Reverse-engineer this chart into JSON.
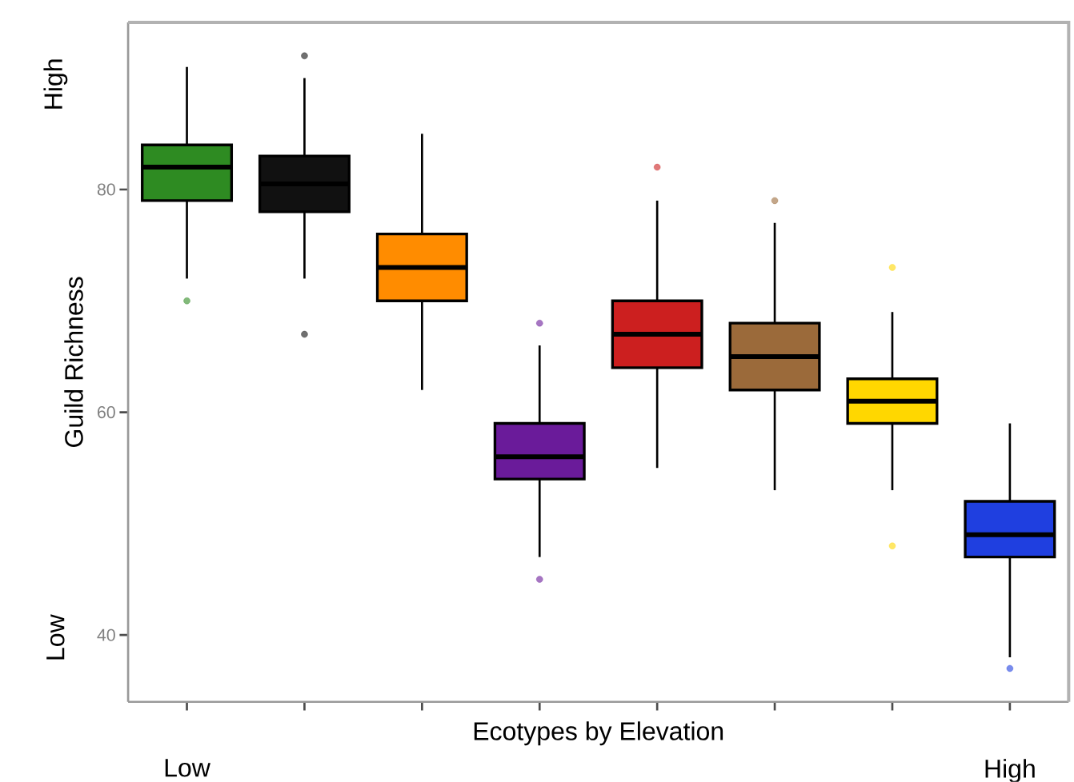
{
  "chart_data": {
    "type": "box",
    "xlabel": "Ecotypes by Elevation",
    "ylabel": "Guild Richness",
    "annotations": [
      "High",
      "Low",
      "Low",
      "High"
    ],
    "categories": [
      null,
      null,
      null,
      null,
      null,
      null,
      null,
      null
    ],
    "colors": [
      "#2e8b22",
      "#111111",
      "#ff8c00",
      "#6a1b9a",
      "#cc1f1f",
      "#9b6a3a",
      "#ffd700",
      "#1f3fe0"
    ],
    "boxes": [
      {
        "low": 72,
        "q1": 79,
        "median": 82,
        "q3": 84,
        "high": 91,
        "outliers": [
          70
        ]
      },
      {
        "low": 72,
        "q1": 78,
        "median": 80.5,
        "q3": 83,
        "high": 90,
        "outliers": [
          92,
          67
        ]
      },
      {
        "low": 62,
        "q1": 70,
        "median": 73,
        "q3": 76,
        "high": 85
      },
      {
        "low": 47,
        "q1": 54,
        "median": 56,
        "q3": 59,
        "high": 66,
        "outliers": [
          45,
          68
        ]
      },
      {
        "low": 55,
        "q1": 64,
        "median": 67,
        "q3": 70,
        "high": 79,
        "outliers": [
          82
        ]
      },
      {
        "low": 53,
        "q1": 62,
        "median": 65,
        "q3": 68,
        "high": 77,
        "outliers": [
          79
        ]
      },
      {
        "low": 53,
        "q1": 59,
        "median": 61,
        "q3": 63,
        "high": 69,
        "outliers": [
          48,
          73
        ]
      },
      {
        "low": 38,
        "q1": 47,
        "median": 49,
        "q3": 52,
        "high": 59,
        "outliers": [
          37
        ]
      }
    ],
    "ylim": [
      34,
      95
    ],
    "yticks": [
      40,
      60,
      80
    ]
  }
}
